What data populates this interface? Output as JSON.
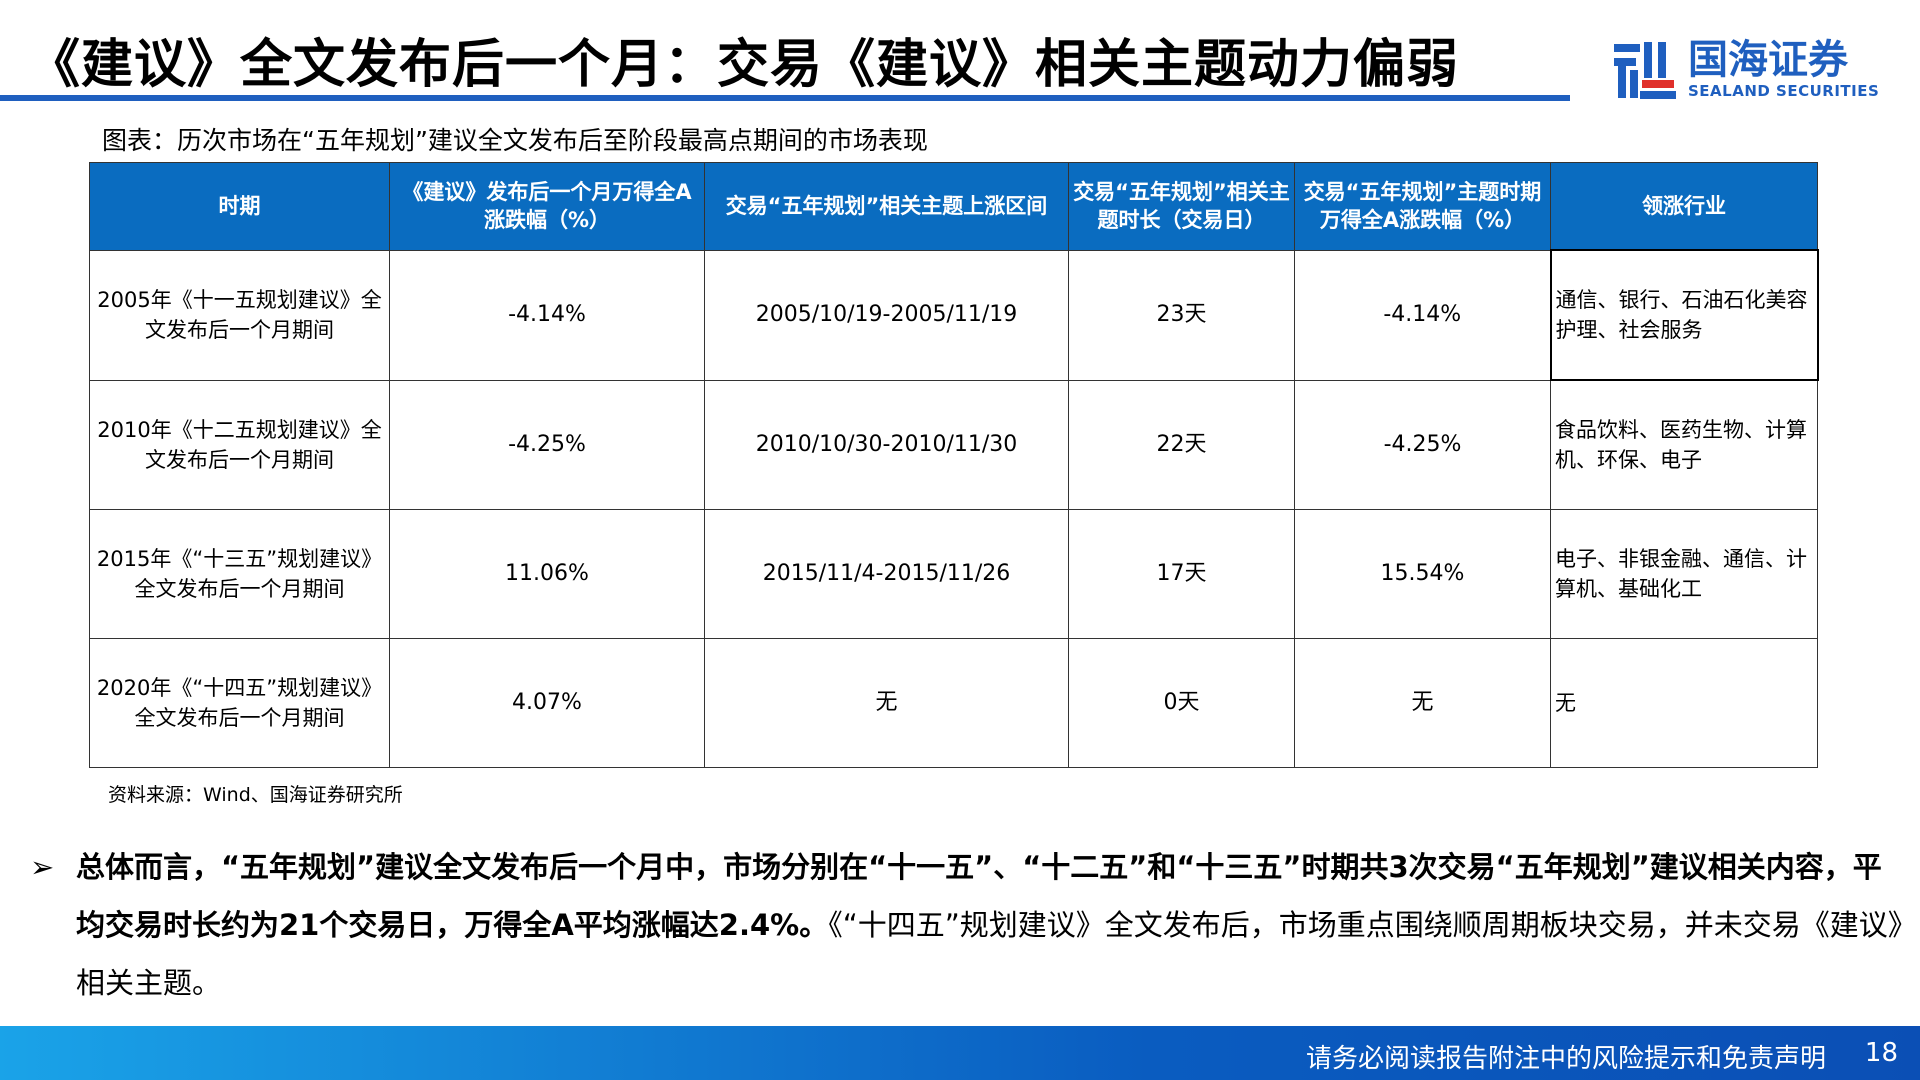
{
  "title": "《建议》全文发布后一个月：交易《建议》相关主题动力偏弱",
  "logo": {
    "cn": "国海证券",
    "en": "SEALAND SECURITIES",
    "primary_color": "#1f5fbf",
    "accent_color": "#e0302a"
  },
  "caption": "图表：历次市场在“五年规划”建议全文发布后至阶段最高点期间的市场表现",
  "table": {
    "headers": [
      "时期",
      "《建议》发布后一个月万得全A涨跌幅（%）",
      "交易“五年规划”相关主题上涨区间",
      "交易“五年规划”相关主题时长（交易日）",
      "交易“五年规划”主题时期万得全A涨跌幅（%）",
      "领涨行业"
    ],
    "rows": [
      [
        "2005年《十一五规划建议》全文发布后一个月期间",
        "-4.14%",
        "2005/10/19-2005/11/19",
        "23天",
        "-4.14%",
        "通信、银行、石油石化美容护理、社会服务"
      ],
      [
        "2010年《十二五规划建议》全文发布后一个月期间",
        "-4.25%",
        "2010/10/30-2010/11/30",
        "22天",
        "-4.25%",
        "食品饮料、医药生物、计算机、环保、电子"
      ],
      [
        "2015年《“十三五”规划建议》全文发布后一个月期间",
        "11.06%",
        "2015/11/4-2015/11/26",
        "17天",
        "15.54%",
        "电子、非银金融、通信、计算机、基础化工"
      ],
      [
        "2020年《“十四五”规划建议》全文发布后一个月期间",
        "4.07%",
        "无",
        "0天",
        "无",
        "无"
      ]
    ]
  },
  "source": "资料来源：Wind、国海证券研究所",
  "bullet": {
    "bold": "总体而言，“五年规划”建议全文发布后一个月中，市场分别在“十一五”、“十二五”和“十三五”时期共3次交易“五年规划”建议相关内容，平均交易时长约为21个交易日，万得全A平均涨幅达2.4%。",
    "normal": "《“十四五”规划建议》全文发布后，市场重点围绕顺周期板块交易，并未交易《建议》相关主题。"
  },
  "footer": {
    "note": "请务必阅读报告附注中的风险提示和免责声明",
    "page": "18"
  }
}
